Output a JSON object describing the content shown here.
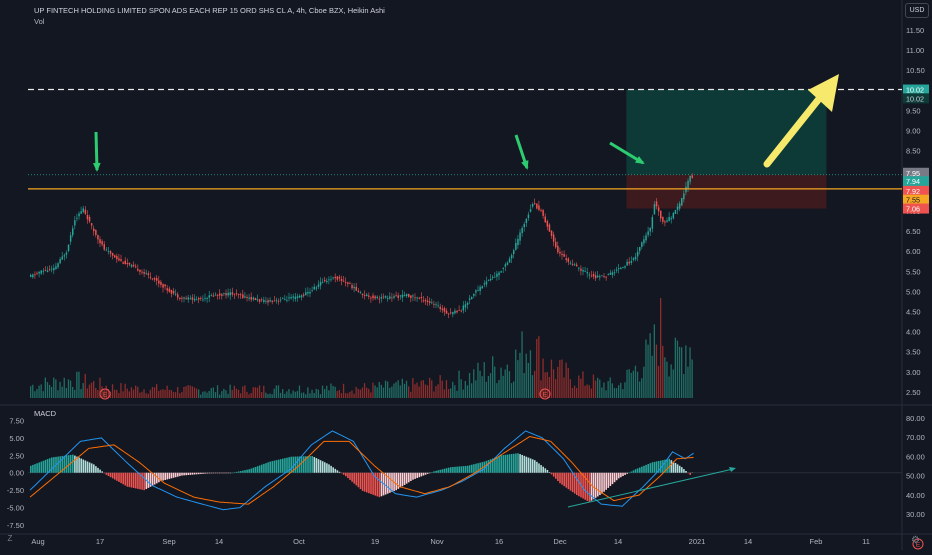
{
  "header": {
    "title": "UP FINTECH HOLDING LIMITED SPON ADS EACH REP 15 ORD SHS CL A, 4h, Cboe BZX, Heikin Ashi",
    "vol_label": "Vol",
    "currency_badge": "USD"
  },
  "macd_pane": {
    "label": "MACD"
  },
  "controls": {
    "z_label": "Z"
  },
  "colors": {
    "background": "#131722",
    "up": "#26a69a",
    "down": "#ef5350",
    "vol_up": "#1f6f66",
    "vol_down": "#8e2d2b",
    "horizontal_line": "#f5a623",
    "target_zone": "#0d3a36",
    "stop_zone": "#3d1a1e",
    "arrow_green": "#2ecc71",
    "arrow_yellow": "#f6e96b",
    "macd_line": "#2196f3",
    "signal_line": "#ff6d00"
  },
  "chart_data": {
    "type": "candlestick",
    "ylim": [
      2.2,
      11.5
    ],
    "price_ticks": [
      "11.50",
      "11.00",
      "10.50",
      "10.00",
      "9.50",
      "9.00",
      "8.50",
      "8.00",
      "7.50",
      "7.00",
      "6.50",
      "6.00",
      "5.50",
      "5.00",
      "4.50",
      "4.00",
      "3.50",
      "3.00",
      "2.50"
    ],
    "x_tick_labels": [
      "Aug",
      "17",
      "Sep",
      "14",
      "Oct",
      "19",
      "Nov",
      "16",
      "Dec",
      "14",
      "2021",
      "14",
      "Feb",
      "11"
    ],
    "price_path": [
      [
        0,
        5.35
      ],
      [
        6,
        5.5
      ],
      [
        12,
        5.55
      ],
      [
        18,
        6.0
      ],
      [
        22,
        6.8
      ],
      [
        26,
        7.05
      ],
      [
        30,
        6.6
      ],
      [
        36,
        6.05
      ],
      [
        44,
        5.75
      ],
      [
        52,
        5.55
      ],
      [
        60,
        5.3
      ],
      [
        66,
        5.05
      ],
      [
        72,
        4.85
      ],
      [
        80,
        4.8
      ],
      [
        88,
        4.9
      ],
      [
        96,
        4.95
      ],
      [
        104,
        4.85
      ],
      [
        112,
        4.75
      ],
      [
        120,
        4.8
      ],
      [
        128,
        4.85
      ],
      [
        134,
        5.0
      ],
      [
        140,
        5.25
      ],
      [
        146,
        5.35
      ],
      [
        152,
        5.2
      ],
      [
        158,
        4.95
      ],
      [
        164,
        4.85
      ],
      [
        172,
        4.85
      ],
      [
        180,
        4.9
      ],
      [
        188,
        4.8
      ],
      [
        194,
        4.65
      ],
      [
        200,
        4.45
      ],
      [
        206,
        4.55
      ],
      [
        212,
        4.95
      ],
      [
        218,
        5.25
      ],
      [
        224,
        5.45
      ],
      [
        230,
        5.9
      ],
      [
        236,
        6.7
      ],
      [
        240,
        7.2
      ],
      [
        244,
        7.0
      ],
      [
        248,
        6.5
      ],
      [
        252,
        6.0
      ],
      [
        258,
        5.7
      ],
      [
        264,
        5.5
      ],
      [
        270,
        5.35
      ],
      [
        276,
        5.4
      ],
      [
        282,
        5.6
      ],
      [
        288,
        5.8
      ],
      [
        292,
        6.2
      ],
      [
        296,
        6.55
      ],
      [
        298,
        7.2
      ],
      [
        300,
        7.0
      ],
      [
        302,
        6.7
      ],
      [
        306,
        6.85
      ],
      [
        310,
        7.15
      ],
      [
        313,
        7.6
      ],
      [
        315,
        7.85
      ]
    ],
    "volume_path": [
      [
        0,
        0.12
      ],
      [
        20,
        0.18
      ],
      [
        40,
        0.1
      ],
      [
        80,
        0.08
      ],
      [
        120,
        0.09
      ],
      [
        160,
        0.1
      ],
      [
        200,
        0.15
      ],
      [
        230,
        0.35
      ],
      [
        238,
        0.55
      ],
      [
        246,
        0.32
      ],
      [
        260,
        0.18
      ],
      [
        280,
        0.12
      ],
      [
        296,
        0.45
      ],
      [
        300,
        0.7
      ],
      [
        306,
        0.35
      ],
      [
        312,
        0.55
      ],
      [
        315,
        0.5
      ]
    ],
    "macd_ticks": [
      "7.50",
      "5.00",
      "2.50",
      "0.00",
      "-2.50",
      "-5.00",
      "-7.50"
    ],
    "macd_ylim": [
      -8.5,
      9.0
    ],
    "rsi_ticks": [
      "80.00",
      "70.00",
      "60.00",
      "50.00",
      "40.00",
      "30.00"
    ],
    "macd_path": [
      [
        0,
        -2.5
      ],
      [
        12,
        1.0
      ],
      [
        24,
        4.5
      ],
      [
        34,
        5.0
      ],
      [
        46,
        1.5
      ],
      [
        58,
        -1.8
      ],
      [
        70,
        -3.5
      ],
      [
        82,
        -4.5
      ],
      [
        92,
        -5.3
      ],
      [
        100,
        -5.0
      ],
      [
        112,
        -2.0
      ],
      [
        124,
        0.5
      ],
      [
        134,
        4.0
      ],
      [
        144,
        6.0
      ],
      [
        154,
        4.5
      ],
      [
        164,
        -0.5
      ],
      [
        174,
        -3.0
      ],
      [
        184,
        -3.5
      ],
      [
        196,
        -2.5
      ],
      [
        206,
        -1.2
      ],
      [
        216,
        0.5
      ],
      [
        226,
        3.5
      ],
      [
        236,
        6.0
      ],
      [
        244,
        5.0
      ],
      [
        254,
        2.0
      ],
      [
        264,
        -2.5
      ],
      [
        272,
        -4.5
      ],
      [
        282,
        -4.8
      ],
      [
        292,
        -2.0
      ],
      [
        300,
        0.5
      ],
      [
        306,
        3.0
      ],
      [
        312,
        2.0
      ],
      [
        316,
        2.8
      ]
    ],
    "signal_path": [
      [
        0,
        -3.5
      ],
      [
        14,
        0.0
      ],
      [
        28,
        3.5
      ],
      [
        40,
        4.0
      ],
      [
        52,
        1.5
      ],
      [
        64,
        -1.5
      ],
      [
        78,
        -3.5
      ],
      [
        90,
        -4.2
      ],
      [
        104,
        -4.5
      ],
      [
        116,
        -2.0
      ],
      [
        128,
        1.0
      ],
      [
        140,
        4.5
      ],
      [
        152,
        4.5
      ],
      [
        164,
        1.0
      ],
      [
        176,
        -2.0
      ],
      [
        188,
        -3.0
      ],
      [
        200,
        -2.0
      ],
      [
        212,
        0.0
      ],
      [
        224,
        2.5
      ],
      [
        238,
        5.2
      ],
      [
        248,
        4.5
      ],
      [
        258,
        1.5
      ],
      [
        268,
        -2.0
      ],
      [
        278,
        -4.0
      ],
      [
        290,
        -3.2
      ],
      [
        300,
        -0.5
      ],
      [
        308,
        2.0
      ],
      [
        316,
        2.2
      ]
    ],
    "hist_path": [
      [
        0,
        1.0
      ],
      [
        10,
        2.2
      ],
      [
        20,
        2.6
      ],
      [
        30,
        1.2
      ],
      [
        36,
        -0.3
      ],
      [
        46,
        -2.0
      ],
      [
        54,
        -2.5
      ],
      [
        62,
        -1.2
      ],
      [
        72,
        -0.4
      ],
      [
        84,
        -0.1
      ],
      [
        96,
        0.0
      ],
      [
        104,
        0.5
      ],
      [
        114,
        1.6
      ],
      [
        124,
        2.3
      ],
      [
        134,
        2.4
      ],
      [
        142,
        1.2
      ],
      [
        150,
        -0.5
      ],
      [
        158,
        -2.6
      ],
      [
        166,
        -3.5
      ],
      [
        174,
        -2.5
      ],
      [
        182,
        -1.0
      ],
      [
        192,
        0.2
      ],
      [
        200,
        0.8
      ],
      [
        208,
        1.0
      ],
      [
        216,
        1.6
      ],
      [
        224,
        2.5
      ],
      [
        232,
        2.8
      ],
      [
        240,
        1.8
      ],
      [
        246,
        0.4
      ],
      [
        252,
        -1.5
      ],
      [
        260,
        -3.2
      ],
      [
        266,
        -4.2
      ],
      [
        272,
        -3.0
      ],
      [
        280,
        -0.8
      ],
      [
        288,
        0.5
      ],
      [
        296,
        1.5
      ],
      [
        304,
        2.0
      ],
      [
        310,
        0.8
      ],
      [
        314,
        -0.3
      ],
      [
        316,
        0.4
      ]
    ],
    "annotations": {
      "resistance_price": 7.55,
      "dotted_line_price": 7.9,
      "target_dash_price": 10.02,
      "stop_price": 7.06,
      "labels": [
        {
          "text": "10.02",
          "price": 10.02,
          "bg": "#26a69a",
          "fg": "#ffffff"
        },
        {
          "text": "10.02",
          "price": 9.8,
          "bg": "#0d3a36",
          "fg": "#d1d4dc"
        },
        {
          "text": "7.95",
          "price": 7.95,
          "bg": "#787b86",
          "fg": "#ffffff"
        },
        {
          "text": "7.94",
          "price": 7.74,
          "bg": "#26a69a",
          "fg": "#ffffff"
        },
        {
          "text": "7.92",
          "price": 7.5,
          "bg": "#ef5350",
          "fg": "#ffffff"
        },
        {
          "text": "7.55",
          "price": 7.28,
          "bg": "#f5a623",
          "fg": "#131722"
        },
        {
          "text": "7.06",
          "price": 7.06,
          "bg": "#ef5350",
          "fg": "#ffffff"
        }
      ],
      "earnings_markers": [
        "E",
        "E",
        "E"
      ]
    }
  }
}
